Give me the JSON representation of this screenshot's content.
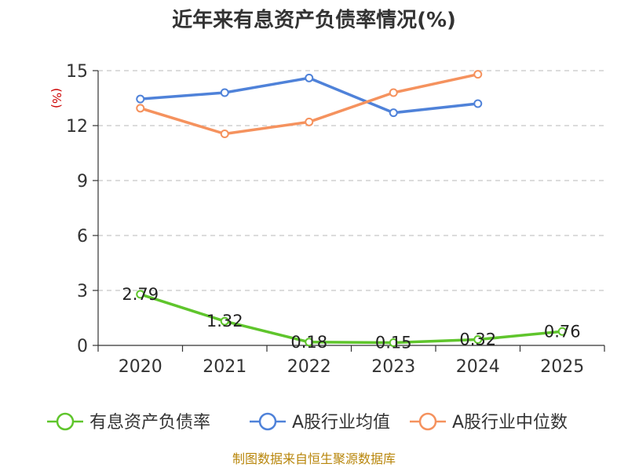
{
  "chart_data": {
    "type": "line",
    "title": "近年来有息资产负债率情况(%)",
    "ylabel": "(%)",
    "ylim": [
      0,
      15
    ],
    "yticks": [
      0,
      3,
      6,
      9,
      12,
      15
    ],
    "categories": [
      "2020",
      "2021",
      "2022",
      "2023",
      "2024",
      "2025"
    ],
    "grid": true,
    "legend_position": "bottom",
    "series": [
      {
        "name": "有息资产负债率",
        "color": "#5fc52c",
        "values": [
          2.79,
          1.32,
          0.18,
          0.15,
          0.32,
          0.76
        ],
        "labels": [
          "2.79",
          "1.32",
          "0.18",
          "0.15",
          "0.32",
          "0.76"
        ]
      },
      {
        "name": "A股行业均值",
        "color": "#4f82d9",
        "values": [
          13.45,
          13.8,
          14.6,
          12.7,
          13.2,
          null
        ]
      },
      {
        "name": "A股行业中位数",
        "color": "#f5925e",
        "values": [
          12.95,
          11.55,
          12.2,
          13.8,
          14.8,
          null
        ]
      }
    ]
  },
  "source": "制图数据来自恒生聚源数据库"
}
